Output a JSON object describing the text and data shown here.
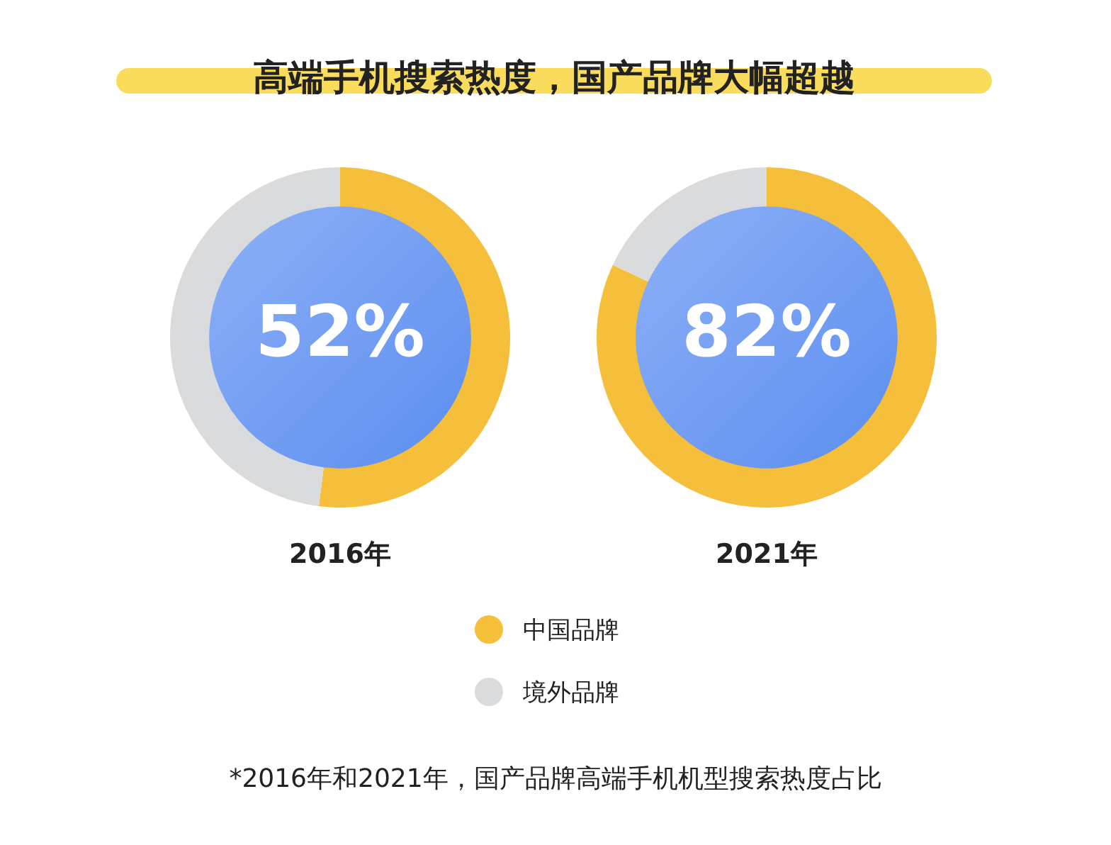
{
  "chart_data": [
    {
      "type": "donut",
      "title": "高端手机搜索热度，国产品牌大幅超越",
      "xlabel": "2016年",
      "categories": [
        "中国品牌",
        "境外品牌"
      ],
      "values": [
        52,
        48
      ],
      "colors": [
        "#f5bf3c",
        "#dadbdd"
      ],
      "value_labels": [
        "52%",
        null
      ],
      "legend": "bottom"
    },
    {
      "type": "donut",
      "xlabel": "2021年",
      "categories": [
        null,
        null
      ],
      "values": [
        82,
        18
      ],
      "colors": [
        "#f5bf3c",
        "#dadbdd"
      ],
      "value_labels": [
        "82%",
        null
      ],
      "annotations": [
        "*2016年和2021年，国产品牌高端手机机型搜索热度占比"
      ]
    }
  ]
}
